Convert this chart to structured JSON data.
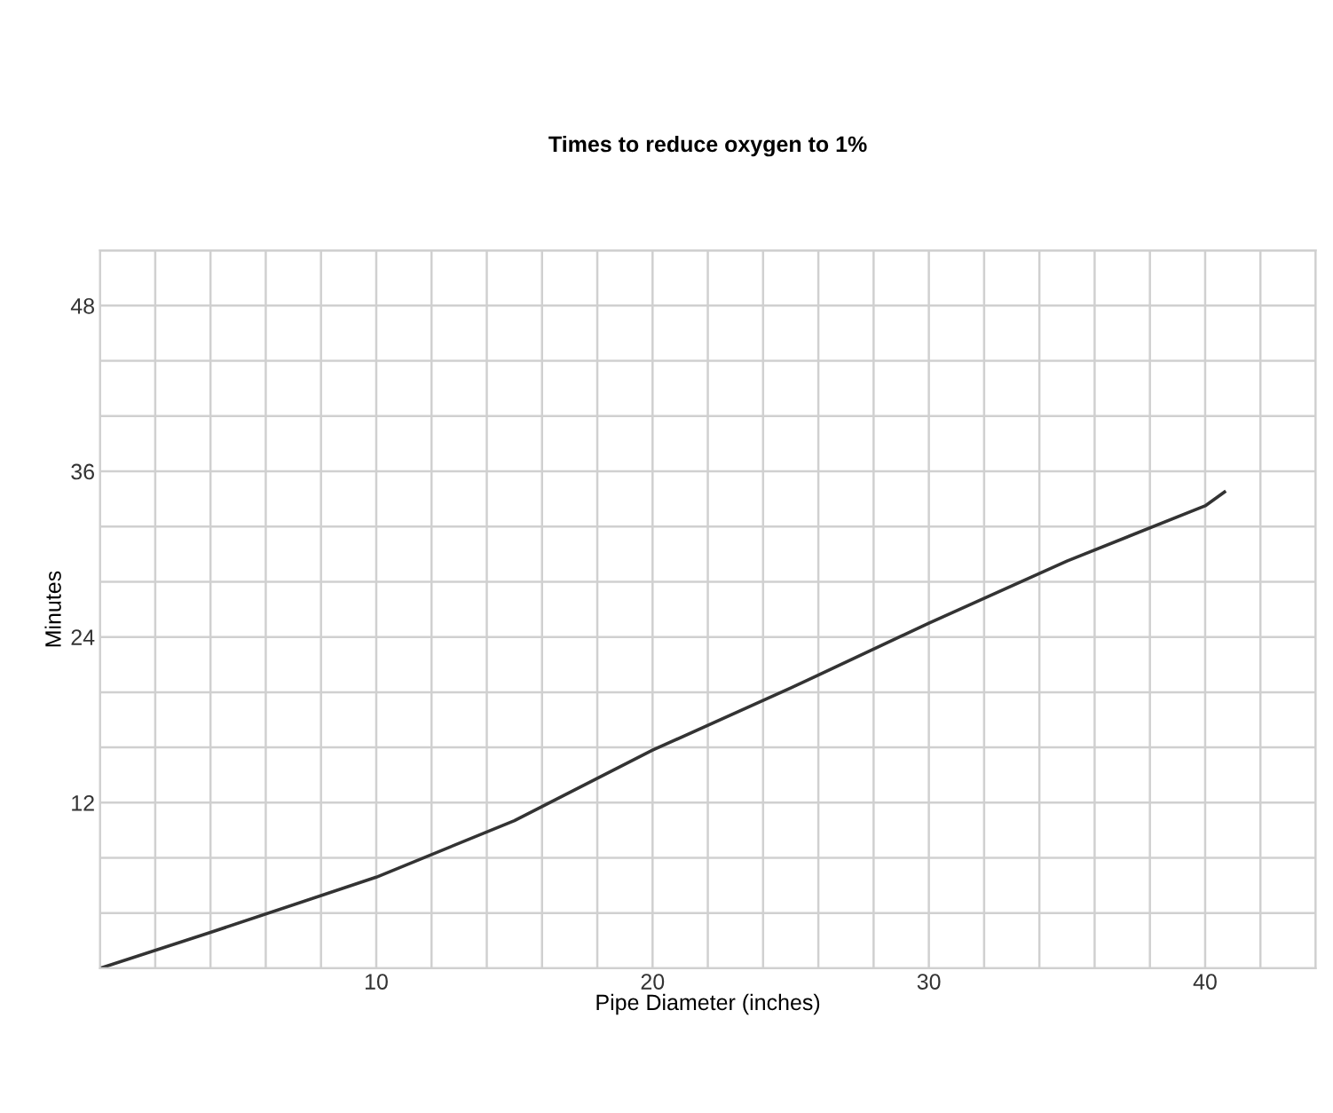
{
  "chart_data": {
    "type": "line",
    "title": "Times to reduce oxygen to 1%",
    "xlabel": "Pipe Diameter (inches)",
    "ylabel": "Minutes",
    "series": [
      {
        "color": "#333333",
        "x": [
          0,
          4,
          10,
          15,
          20,
          25,
          30,
          35,
          40,
          40.7
        ],
        "values": [
          0,
          2.6,
          6.6,
          10.7,
          15.8,
          20.3,
          25.0,
          29.5,
          33.5,
          34.5
        ]
      }
    ],
    "xlim": [
      0,
      44
    ],
    "xticks": [
      {
        "value": 0,
        "label": null
      },
      {
        "value": 2,
        "label": null
      },
      {
        "value": 4,
        "label": null
      },
      {
        "value": 6,
        "label": null
      },
      {
        "value": 8,
        "label": null
      },
      10,
      {
        "value": 12,
        "label": null
      },
      {
        "value": 14,
        "label": null
      },
      {
        "value": 16,
        "label": null
      },
      {
        "value": 18,
        "label": null
      },
      20,
      {
        "value": 22,
        "label": null
      },
      {
        "value": 24,
        "label": null
      },
      {
        "value": 26,
        "label": null
      },
      {
        "value": 28,
        "label": null
      },
      30,
      {
        "value": 32,
        "label": null
      },
      {
        "value": 34,
        "label": null
      },
      {
        "value": 36,
        "label": null
      },
      {
        "value": 38,
        "label": null
      },
      40,
      {
        "value": 42,
        "label": null
      },
      {
        "value": 44,
        "label": null
      }
    ],
    "ylim": [
      0,
      52
    ],
    "yticks": [
      {
        "value": 0,
        "label": null
      },
      {
        "value": 4,
        "label": null
      },
      {
        "value": 8,
        "label": null
      },
      12,
      {
        "value": 16,
        "label": null
      },
      {
        "value": 20,
        "label": null
      },
      24,
      {
        "value": 28,
        "label": null
      },
      {
        "value": 32,
        "label": null
      },
      36,
      {
        "value": 40,
        "label": null
      },
      {
        "value": 44,
        "label": null
      },
      48,
      {
        "value": 52,
        "label": null
      }
    ],
    "grid": true,
    "legend": false,
    "marker": "none",
    "line_style": "solid"
  }
}
